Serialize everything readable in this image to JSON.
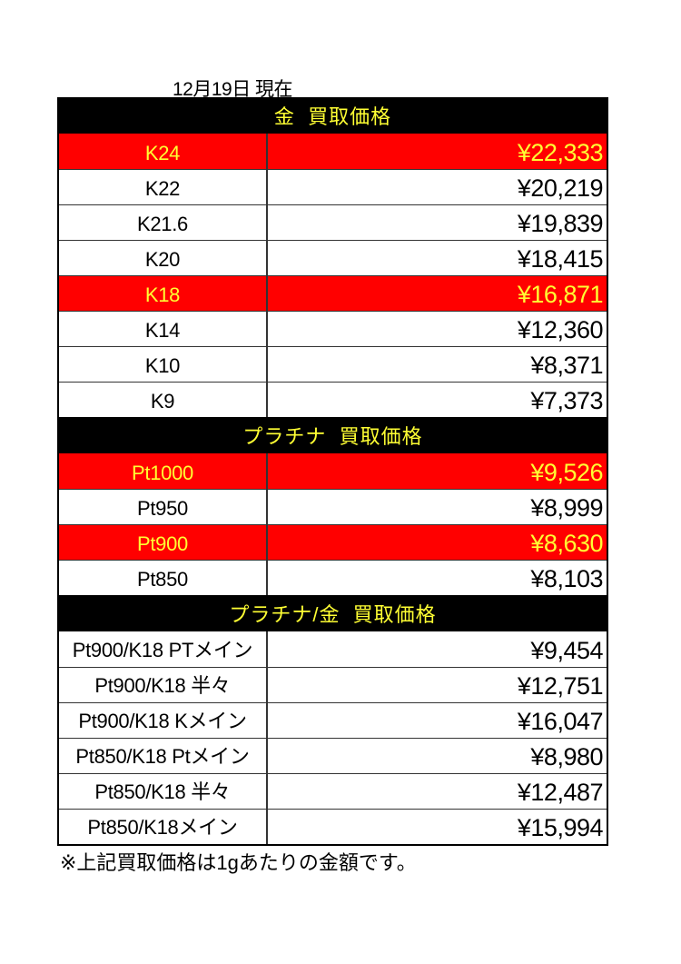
{
  "date_label": "12月19日 現在",
  "sections": [
    {
      "title": "金  買取価格",
      "rows": [
        {
          "label": "K24",
          "price": "¥22,333",
          "highlight": true
        },
        {
          "label": "K22",
          "price": "¥20,219",
          "highlight": false
        },
        {
          "label": "K21.6",
          "price": "¥19,839",
          "highlight": false
        },
        {
          "label": "K20",
          "price": "¥18,415",
          "highlight": false
        },
        {
          "label": "K18",
          "price": "¥16,871",
          "highlight": true
        },
        {
          "label": "K14",
          "price": "¥12,360",
          "highlight": false
        },
        {
          "label": "K10",
          "price": "¥8,371",
          "highlight": false
        },
        {
          "label": "K9",
          "price": "¥7,373",
          "highlight": false
        }
      ]
    },
    {
      "title": "プラチナ  買取価格",
      "rows": [
        {
          "label": "Pt1000",
          "price": "¥9,526",
          "highlight": true
        },
        {
          "label": "Pt950",
          "price": "¥8,999",
          "highlight": false
        },
        {
          "label": "Pt900",
          "price": "¥8,630",
          "highlight": true
        },
        {
          "label": "Pt850",
          "price": "¥8,103",
          "highlight": false
        }
      ]
    },
    {
      "title": "プラチナ/金  買取価格",
      "rows": [
        {
          "label": "Pt900/K18 PTメイン",
          "price": "¥9,454",
          "highlight": false
        },
        {
          "label": "Pt900/K18 半々",
          "price": "¥12,751",
          "highlight": false
        },
        {
          "label": "Pt900/K18 Kメイン",
          "price": "¥16,047",
          "highlight": false
        },
        {
          "label": "Pt850/K18 Ptメイン",
          "price": "¥8,980",
          "highlight": false
        },
        {
          "label": "Pt850/K18 半々",
          "price": "¥12,487",
          "highlight": false
        },
        {
          "label": "Pt850/K18メイン",
          "price": "¥15,994",
          "highlight": false
        }
      ]
    }
  ],
  "footnote": "※上記買取価格は1gあたりの金額です。",
  "colors": {
    "header_bg": "#000000",
    "header_text": "#ffff33",
    "highlight_bg": "#ff0000",
    "highlight_text": "#ffff33"
  }
}
